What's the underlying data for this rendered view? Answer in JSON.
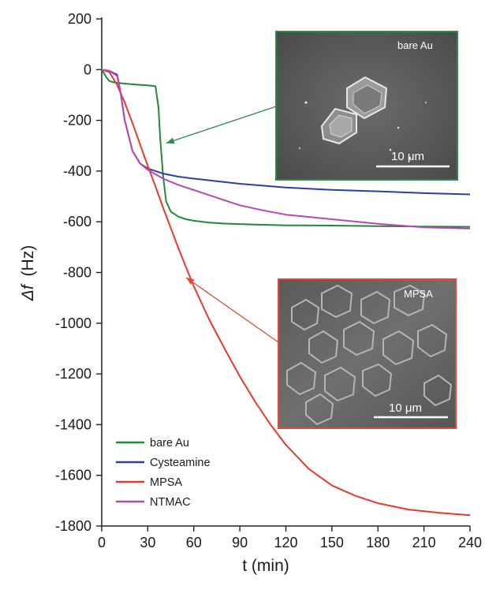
{
  "chart_data": {
    "type": "line",
    "xlabel": "t (min)",
    "ylabel_symbol": "Δf",
    "ylabel_unit": "(Hz)",
    "xlim": [
      0,
      240
    ],
    "ylim": [
      -1800,
      200
    ],
    "xticks": [
      0,
      30,
      60,
      90,
      120,
      150,
      180,
      210,
      240
    ],
    "yticks": [
      200,
      0,
      -200,
      -400,
      -600,
      -800,
      -1000,
      -1200,
      -1400,
      -1600,
      -1800
    ],
    "legend_position": "bottom-left",
    "grid": false,
    "series": [
      {
        "name": "bare Au",
        "color": "#1f8a3a",
        "x": [
          0,
          3,
          5,
          8,
          10,
          15,
          20,
          25,
          30,
          35,
          37,
          38,
          40,
          42,
          45,
          50,
          55,
          60,
          70,
          80,
          100,
          120,
          150,
          180,
          210,
          240
        ],
        "y": [
          0,
          -30,
          -45,
          -50,
          -52,
          -55,
          -58,
          -60,
          -62,
          -65,
          -150,
          -260,
          -420,
          -520,
          -560,
          -580,
          -590,
          -596,
          -603,
          -607,
          -611,
          -614,
          -615,
          -617,
          -619,
          -620
        ]
      },
      {
        "name": "Cysteamine",
        "color": "#2e3fa3",
        "x": [
          0,
          5,
          10,
          12,
          15,
          20,
          25,
          30,
          40,
          50,
          60,
          75,
          90,
          120,
          150,
          180,
          210,
          240
        ],
        "y": [
          0,
          -5,
          -20,
          -80,
          -200,
          -320,
          -370,
          -390,
          -410,
          -422,
          -430,
          -440,
          -450,
          -465,
          -474,
          -480,
          -487,
          -492
        ]
      },
      {
        "name": "MPSA",
        "color": "#e53a2f",
        "x": [
          0,
          5,
          10,
          15,
          20,
          25,
          30,
          35,
          40,
          45,
          50,
          55,
          60,
          70,
          80,
          90,
          100,
          110,
          120,
          135,
          150,
          165,
          180,
          200,
          220,
          240
        ],
        "y": [
          0,
          -10,
          -60,
          -130,
          -210,
          -295,
          -380,
          -460,
          -545,
          -625,
          -705,
          -780,
          -855,
          -985,
          -1100,
          -1210,
          -1310,
          -1400,
          -1480,
          -1575,
          -1640,
          -1680,
          -1710,
          -1735,
          -1748,
          -1757
        ]
      },
      {
        "name": "NTMAC",
        "color": "#b848b0",
        "x": [
          0,
          5,
          10,
          12,
          15,
          20,
          25,
          30,
          40,
          50,
          60,
          75,
          90,
          105,
          120,
          150,
          180,
          210,
          240
        ],
        "y": [
          0,
          -5,
          -25,
          -80,
          -200,
          -320,
          -370,
          -395,
          -430,
          -455,
          -475,
          -505,
          -535,
          -555,
          -572,
          -590,
          -608,
          -622,
          -627
        ]
      }
    ],
    "insets": [
      {
        "label": "bare Au",
        "scale_label": "10 μm",
        "border_color": "#2e8b45",
        "points_to_series": "bare Au",
        "arrow_at": [
          42,
          -290
        ]
      },
      {
        "label": "MPSA",
        "scale_label": "10 μm",
        "border_color": "#e04a3a",
        "points_to_series": "MPSA",
        "arrow_at": [
          55,
          -820
        ]
      }
    ]
  }
}
